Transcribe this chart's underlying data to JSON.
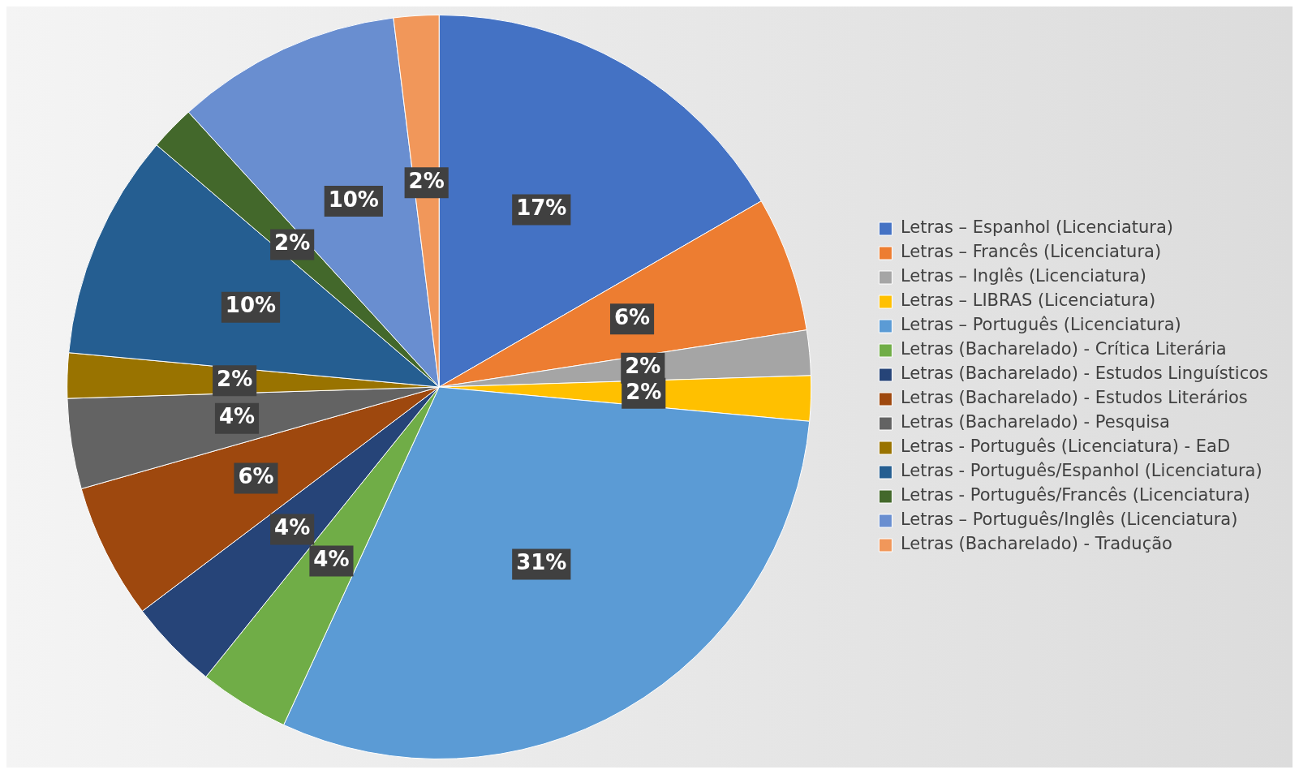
{
  "chart_data": {
    "type": "pie",
    "categories": [
      "Letras – Espanhol (Licenciatura)",
      "Letras – Francês (Licenciatura)",
      "Letras – Inglês (Licenciatura)",
      "Letras – LIBRAS (Licenciatura)",
      "Letras – Português (Licenciatura)",
      "Letras (Bacharelado) - Crítica Literária",
      "Letras (Bacharelado) - Estudos Linguísticos",
      "Letras (Bacharelado) - Estudos Literários",
      "Letras (Bacharelado) - Pesquisa",
      "Letras - Português (Licenciatura) - EaD",
      "Letras - Português/Espanhol (Licenciatura)",
      "Letras - Português/Francês (Licenciatura)",
      "Letras – Português/Inglês (Licenciatura)",
      "Letras (Bacharelado) - Tradução"
    ],
    "values": [
      17,
      6,
      2,
      2,
      31,
      4,
      4,
      6,
      4,
      2,
      10,
      2,
      10,
      2
    ],
    "colors": [
      "#4472c4",
      "#ed7d31",
      "#a5a5a5",
      "#ffc000",
      "#5b9bd5",
      "#70ad47",
      "#264478",
      "#9e480e",
      "#636363",
      "#997300",
      "#255e91",
      "#43682b",
      "#698ed0",
      "#f1975a"
    ],
    "value_labels": [
      "17%",
      "6%",
      "2%",
      "2%",
      "31%",
      "4%",
      "4%",
      "6%",
      "4%",
      "2%",
      "10%",
      "2%",
      "10%",
      "2%"
    ],
    "legend": "right"
  }
}
